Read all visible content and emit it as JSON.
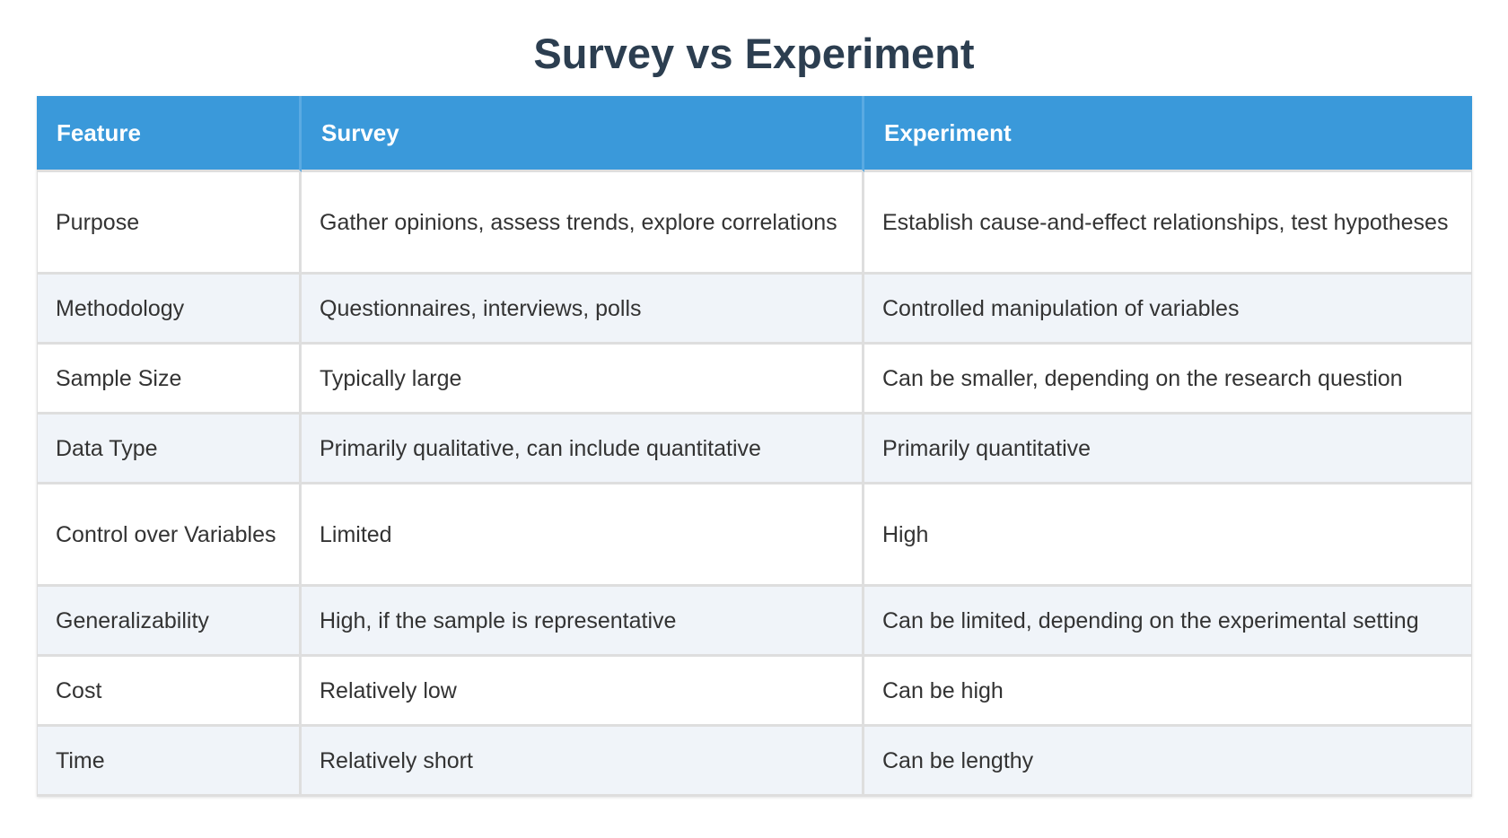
{
  "title": "Survey vs Experiment",
  "table": {
    "headers": [
      "Feature",
      "Survey",
      "Experiment"
    ],
    "rows": [
      [
        "Purpose",
        "Gather opinions, assess trends, explore correlations",
        "Establish cause-and-effect relationships, test hypotheses"
      ],
      [
        "Methodology",
        "Questionnaires, interviews, polls",
        "Controlled manipulation of variables"
      ],
      [
        "Sample Size",
        "Typically large",
        "Can be smaller, depending on the research question"
      ],
      [
        "Data Type",
        "Primarily qualitative, can include quantitative",
        "Primarily quantitative"
      ],
      [
        "Control over Variables",
        "Limited",
        "High"
      ],
      [
        "Generalizability",
        "High, if the sample is representative",
        "Can be limited, depending on the experimental setting"
      ],
      [
        "Cost",
        "Relatively low",
        "Can be high"
      ],
      [
        "Time",
        "Relatively short",
        "Can be lengthy"
      ]
    ]
  },
  "colors": {
    "header_bg": "#3a99da",
    "header_text": "#ffffff",
    "title_text": "#2c3e50",
    "row_alt_bg": "#f0f4f9",
    "row_bg": "#ffffff",
    "border": "#dedede"
  }
}
